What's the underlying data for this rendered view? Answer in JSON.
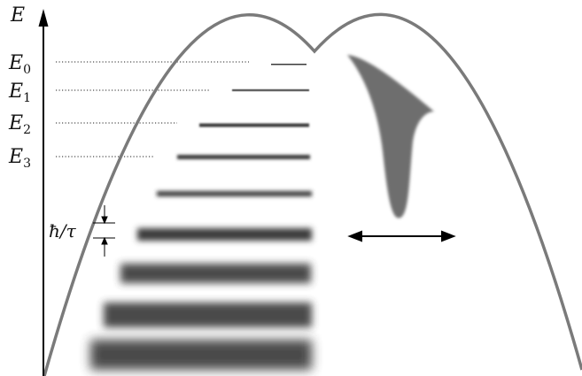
{
  "axis": {
    "label": "E"
  },
  "levels": [
    {
      "symbol": "E",
      "index": "0"
    },
    {
      "symbol": "E",
      "index": "1"
    },
    {
      "symbol": "E",
      "index": "2"
    },
    {
      "symbol": "E",
      "index": "3"
    }
  ],
  "width_annotation": {
    "text": "ħ/τ"
  },
  "colors": {
    "curve": "#7a7a7a",
    "levels": "#3a3a3a",
    "wavepacket": "#6e6e6e",
    "axis": "#000000"
  },
  "icons": {
    "axis_arrow": "arrow-up-icon",
    "motion_arrow": "double-arrow-icon"
  }
}
